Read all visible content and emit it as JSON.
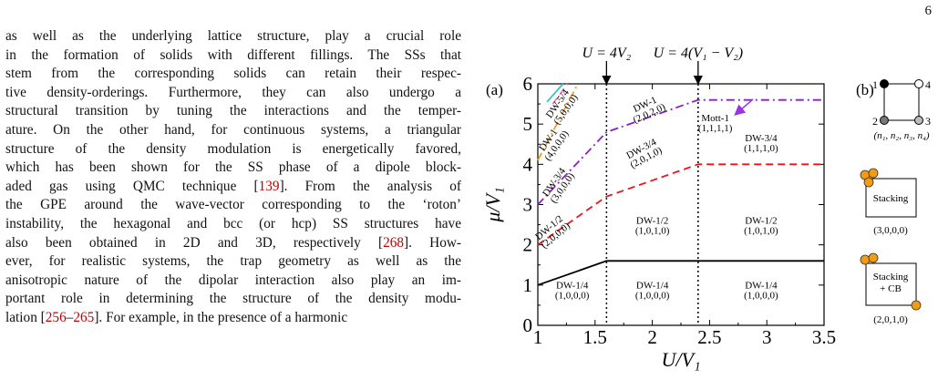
{
  "page_number": "6",
  "body_text": {
    "lines": [
      [
        {
          "t": "as well as the underlying lattice structure, play a crucial role"
        }
      ],
      [
        {
          "t": "in the formation of solids with different fillings. The SSs that"
        }
      ],
      [
        {
          "t": "stem from the corresponding solids can retain their respec-"
        }
      ],
      [
        {
          "t": "tive density-orderings. Furthermore, they can also undergo a"
        }
      ],
      [
        {
          "t": "structural transition by tuning the interactions and the temper-"
        }
      ],
      [
        {
          "t": "ature. On the other hand, for continuous systems, a triangular"
        }
      ],
      [
        {
          "t": "structure of the density modulation is energetically favored,"
        }
      ],
      [
        {
          "t": "which has been shown for the SS phase of a dipole block-"
        }
      ],
      [
        {
          "t": "aded gas using QMC technique ["
        },
        {
          "t": "139",
          "c": 1
        },
        {
          "t": "]. From the analysis of"
        }
      ],
      [
        {
          "t": "the GPE around the wave-vector corresponding to the ‘roton’"
        }
      ],
      [
        {
          "t": "instability, the hexagonal and bcc (or hcp) SS structures have"
        }
      ],
      [
        {
          "t": "also been obtained in 2D and 3D, respectively ["
        },
        {
          "t": "268",
          "c": 1
        },
        {
          "t": "]. How-"
        }
      ],
      [
        {
          "t": "ever, for realistic systems, the trap geometry as well as the"
        }
      ],
      [
        {
          "t": "anisotropic nature of the dipolar interaction also play an im-"
        }
      ],
      [
        {
          "t": "portant role in determining the structure of the density modu-"
        }
      ],
      [
        {
          "t": "lation ["
        },
        {
          "t": "256",
          "c": 1
        },
        {
          "t": "–"
        },
        {
          "t": "265",
          "c": 1
        },
        {
          "t": "]. For example, in the presence of a harmonic"
        }
      ]
    ]
  },
  "figure": {
    "panel_a_label": "(a)",
    "panel_b_label": "(b)",
    "top_labels": [
      "U = 4V₂",
      "U = 4(V₁ − V₂)"
    ],
    "colors": {
      "black": "#000000",
      "red": "#e8161b",
      "purple": "#8b1ec8",
      "orange": "#f0a020",
      "teal": "#39c6c0",
      "pink": "#f07ab4",
      "violet_arrow": "#9b33e0",
      "site_orange": "#f39c12"
    },
    "chart_data": {
      "type": "line",
      "xlabel": "U/V₁",
      "ylabel": "μ/V₁",
      "xlim": [
        1,
        3.5
      ],
      "ylim": [
        0,
        6
      ],
      "x_ticks": [
        "1",
        "1.5",
        "2",
        "2.5",
        "3",
        "3.5"
      ],
      "y_ticks": [
        "0",
        "1",
        "2",
        "3",
        "4",
        "5",
        "6"
      ],
      "vlines_dotted": [
        1.6,
        2.4
      ],
      "series": [
        {
          "color": "#000000",
          "style": "solid",
          "x": [
            1,
            1.6,
            3.5
          ],
          "y": [
            1,
            1.6,
            1.6
          ]
        },
        {
          "color": "#e8161b",
          "style": "dashed",
          "x": [
            1,
            1.6,
            2.4,
            3.5
          ],
          "y": [
            2,
            3.2,
            4,
            4
          ]
        },
        {
          "color": "#8b1ec8",
          "style": "dashdot",
          "x": [
            1,
            1.6,
            2.4,
            3.5
          ],
          "y": [
            3,
            4.8,
            5.6,
            5.6
          ]
        },
        {
          "color": "#f0a020",
          "style": "dashdot",
          "x": [
            1,
            1.35
          ],
          "y": [
            4.1,
            6
          ]
        },
        {
          "color": "#39c6c0",
          "style": "solid",
          "x": [
            1.08,
            1.22
          ],
          "y": [
            5.55,
            6
          ]
        },
        {
          "color": "#f07ab4",
          "style": "dashed",
          "x": [
            1.13,
            1.26
          ],
          "y": [
            5.5,
            6
          ]
        }
      ],
      "phase_labels": [
        {
          "x": 1.3,
          "y": 0.9,
          "name": "DW-1/4",
          "occ": "(1,0,0,0)",
          "rot": 0
        },
        {
          "x": 2.0,
          "y": 0.9,
          "name": "DW-1/4",
          "occ": "(1,0,0,0)",
          "rot": 0
        },
        {
          "x": 2.95,
          "y": 0.9,
          "name": "DW-1/4",
          "occ": "(1,0,0,0)",
          "rot": 0
        },
        {
          "x": 2.0,
          "y": 2.5,
          "name": "DW-1/2",
          "occ": "(1,0,1,0)",
          "rot": 0
        },
        {
          "x": 2.95,
          "y": 2.5,
          "name": "DW-1/2",
          "occ": "(1,0,1,0)",
          "rot": 0
        },
        {
          "x": 1.12,
          "y": 2.35,
          "name": "DW-1/2",
          "occ": "(2,0,0,0)",
          "rot": -40
        },
        {
          "x": 1.17,
          "y": 3.5,
          "name": "DW-3/4",
          "occ": "(3,0,0,0)",
          "rot": -55
        },
        {
          "x": 1.92,
          "y": 4.3,
          "name": "DW-3/4",
          "occ": "(2,0,1,0)",
          "rot": -28
        },
        {
          "x": 2.95,
          "y": 4.55,
          "name": "DW-3/4",
          "occ": "(1,1,1,0)",
          "rot": 0
        },
        {
          "x": 1.12,
          "y": 4.55,
          "name": "DW-1",
          "occ": "(4,0,0,0)",
          "rot": -55
        },
        {
          "x": 1.95,
          "y": 5.4,
          "name": "DW-1",
          "occ": "(2,0,2,0)",
          "rot": -25
        },
        {
          "x": 1.2,
          "y": 5.45,
          "name": "DW-5/4",
          "occ": "(5,0,0,0)",
          "rot": -55
        },
        {
          "x": 2.55,
          "y": 5.05,
          "name": "Mott-1",
          "occ": "(1,1,1,1)",
          "rot": 0
        }
      ]
    },
    "panel_b": {
      "site_numbers": [
        "1",
        "2",
        "3",
        "4"
      ],
      "occupation_caption": "(n₁, n₂, n₃, n₄)",
      "boxes": [
        {
          "label": "Stacking",
          "occ": "(3,0,0,0)"
        },
        {
          "label": "Stacking",
          "label2": "+ CB",
          "occ": "(2,0,1,0)"
        }
      ]
    }
  }
}
